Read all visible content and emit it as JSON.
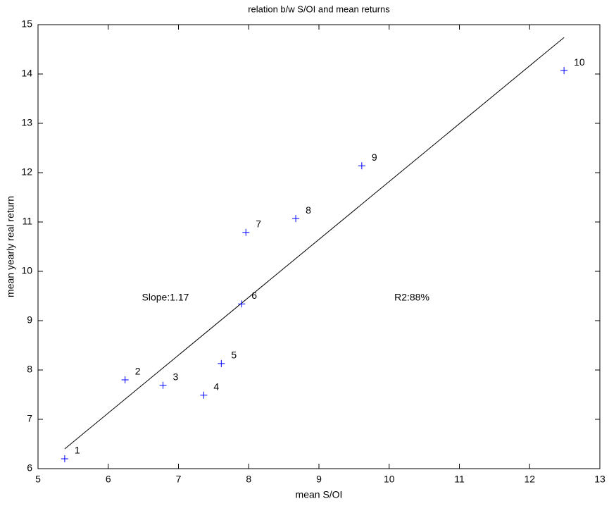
{
  "chart_data": {
    "type": "scatter",
    "title": "relation b/w S/OI and mean returns",
    "x_label": "mean S/OI",
    "y_label": "mean yearly real return",
    "series": [
      {
        "x": [
          5.38,
          6.24,
          6.78,
          7.36,
          7.61,
          7.9,
          7.96,
          8.67,
          9.61,
          12.49
        ],
        "values": [
          6.2,
          7.8,
          7.69,
          7.49,
          8.13,
          9.34,
          10.79,
          11.07,
          12.14,
          14.07
        ],
        "point_labels": [
          "1",
          "2",
          "3",
          "4",
          "5",
          "6",
          "7",
          "8",
          "9",
          "10"
        ],
        "color": "#0000ff"
      }
    ],
    "fit_line": {
      "x": [
        5.38,
        12.49
      ],
      "values": [
        6.4,
        14.74
      ],
      "color": "#000000"
    },
    "annotations": [
      "Slope:1.17",
      "R2:88%"
    ],
    "xlim": [
      5,
      13
    ],
    "xticks": [
      5,
      6,
      7,
      8,
      9,
      10,
      11,
      12,
      13
    ],
    "ylim": [
      6,
      15
    ],
    "yticks": [
      6,
      7,
      8,
      9,
      10,
      11,
      12,
      13,
      14,
      15
    ]
  }
}
